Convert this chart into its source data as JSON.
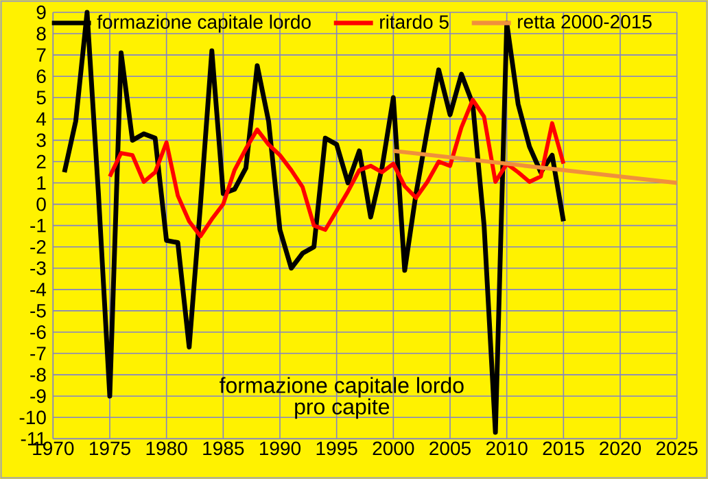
{
  "chart_data": {
    "type": "line",
    "title": "formazione capitale lordo\npro capite",
    "xlim": [
      1970,
      2025
    ],
    "xticks": [
      1970,
      1975,
      1980,
      1985,
      1990,
      1995,
      2000,
      2005,
      2010,
      2015,
      2020,
      2025
    ],
    "ylim": [
      -11,
      9
    ],
    "yticks": [
      -11,
      -10,
      -9,
      -8,
      -7,
      -6,
      -5,
      -4,
      -3,
      -2,
      -1,
      0,
      1,
      2,
      3,
      4,
      5,
      6,
      7,
      8,
      9
    ],
    "grid": true,
    "legend": "top",
    "series": [
      {
        "name": "formazione capitale lordo",
        "color": "#000000",
        "x": [
          1971,
          1972,
          1973,
          1974,
          1975,
          1976,
          1977,
          1978,
          1979,
          1980,
          1981,
          1982,
          1983,
          1984,
          1985,
          1986,
          1987,
          1988,
          1989,
          1990,
          1991,
          1992,
          1993,
          1994,
          1995,
          1996,
          1997,
          1998,
          1999,
          2000,
          2001,
          2002,
          2003,
          2004,
          2005,
          2006,
          2007,
          2008,
          2009,
          2010,
          2011,
          2012,
          2013,
          2014,
          2015
        ],
        "values": [
          1.5,
          3.9,
          9,
          0.5,
          -9,
          7.1,
          3,
          3.3,
          3.1,
          -1.7,
          -1.8,
          -6.7,
          0,
          7.2,
          0.5,
          0.7,
          1.7,
          6.5,
          3.9,
          -1.2,
          -3,
          -2.3,
          -2,
          3.1,
          2.8,
          1,
          2.5,
          -0.6,
          1.7,
          5,
          -3.1,
          0.5,
          3.5,
          6.3,
          4.2,
          6.1,
          4.7,
          -1,
          -10.7,
          8.5,
          4.7,
          2.7,
          1.5,
          2.3,
          -0.8
        ]
      },
      {
        "name": "ritardo 5",
        "color": "#ff0000",
        "x": [
          1975,
          1976,
          1977,
          1978,
          1979,
          1980,
          1981,
          1982,
          1983,
          1984,
          1985,
          1986,
          1987,
          1988,
          1989,
          1990,
          1991,
          1992,
          1993,
          1994,
          1995,
          1996,
          1997,
          1998,
          1999,
          2000,
          2001,
          2002,
          2003,
          2004,
          2005,
          2006,
          2007,
          2008,
          2009,
          2010,
          2011,
          2012,
          2013,
          2014,
          2015
        ],
        "values": [
          1.3,
          2.4,
          2.3,
          1.05,
          1.5,
          2.9,
          0.4,
          -0.8,
          -1.5,
          -0.7,
          0,
          1.6,
          2.6,
          3.5,
          2.8,
          2.3,
          1.6,
          0.8,
          -1,
          -1.2,
          -0.3,
          0.6,
          1.6,
          1.8,
          1.5,
          1.9,
          0.85,
          0.3,
          1.05,
          2,
          1.8,
          3.6,
          4.9,
          4.1,
          1.05,
          1.9,
          1.5,
          1.05,
          1.3,
          3.8,
          1.9
        ]
      },
      {
        "name": "retta 2000-2015",
        "color": "#f0903c",
        "x": [
          2000,
          2025
        ],
        "values": [
          2.5,
          1.0
        ]
      }
    ]
  }
}
